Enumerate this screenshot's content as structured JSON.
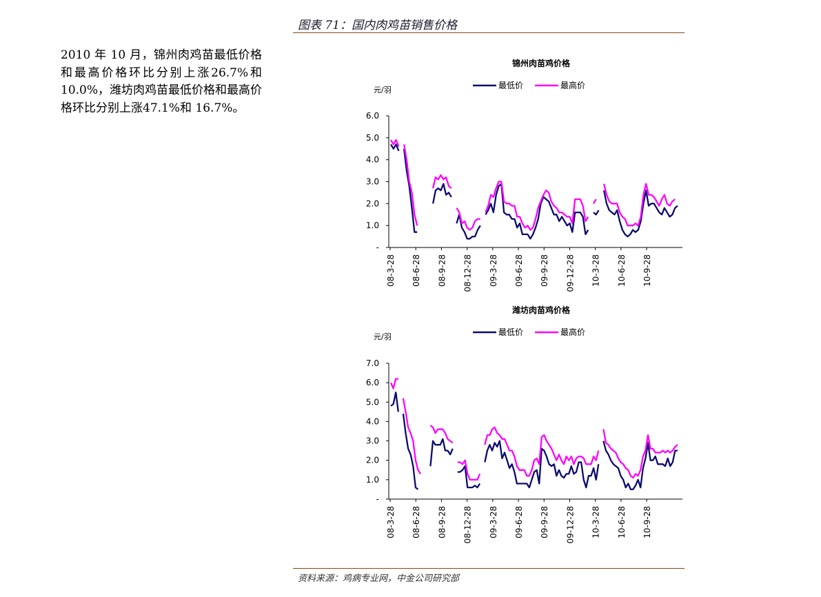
{
  "figure_title": "图表 71：国内肉鸡苗销售价格",
  "side_text": "2010 年 10 月，锦州肉鸡苗最低价格和最高价格环比分别上涨26.7%和 10.0%，潍坊肉鸡苗最低价格和最高价格环比分别上涨47.1%和 16.7%。",
  "source": "资料来源：鸡病专业网，中金公司研究部",
  "colors": {
    "min_series": "#0a0a6e",
    "max_series": "#ff00ff",
    "rule": "#8b4513"
  },
  "chart_data": [
    {
      "type": "line",
      "title": "锦州肉苗鸡价格",
      "ylabel": "元/羽",
      "ylim": [
        0,
        6
      ],
      "yticks": [
        "-",
        "1.0",
        "2.0",
        "3.0",
        "4.0",
        "5.0",
        "6.0"
      ],
      "xtick_labels": [
        "08-3-28",
        "08-6-28",
        "08-9-28",
        "08-12-28",
        "09-3-28",
        "09-6-28",
        "09-9-28",
        "09-12-28",
        "10-3-28",
        "10-6-28",
        "10-9-28"
      ],
      "legend_position": "top",
      "series": [
        {
          "name": "最低价",
          "color": "#0a0a6e",
          "values": [
            4.7,
            4.5,
            4.7,
            4.4,
            null,
            4.5,
            3.5,
            2.8,
            1.8,
            0.7,
            0.7,
            null,
            null,
            null,
            null,
            null,
            2.0,
            2.6,
            2.7,
            2.6,
            2.9,
            2.4,
            2.5,
            2.3,
            null,
            1.1,
            1.5,
            0.9,
            0.7,
            0.4,
            0.4,
            0.5,
            0.5,
            0.8,
            1.0,
            null,
            1.5,
            1.7,
            2.0,
            1.6,
            2.4,
            2.8,
            2.9,
            1.6,
            1.5,
            1.5,
            1.3,
            1.3,
            0.9,
            1.1,
            0.6,
            0.6,
            0.6,
            0.4,
            0.6,
            0.9,
            1.3,
            2.0,
            2.3,
            2.2,
            2.1,
            1.8,
            1.5,
            1.5,
            1.2,
            1.4,
            1.2,
            1.0,
            1.1,
            0.7,
            1.6,
            1.6,
            1.6,
            1.4,
            0.6,
            0.8,
            null,
            1.6,
            1.5,
            1.7,
            null,
            2.6,
            2.0,
            1.7,
            1.6,
            1.5,
            1.7,
            1.2,
            0.8,
            0.6,
            0.5,
            0.6,
            0.8,
            0.7,
            0.8,
            1.2,
            2.0,
            2.6,
            1.9,
            2.0,
            2.0,
            1.8,
            1.6,
            1.5,
            1.8,
            1.6,
            1.4,
            1.5,
            1.8,
            1.9
          ]
        },
        {
          "name": "最高价",
          "color": "#ff00ff",
          "values": [
            4.9,
            4.7,
            4.9,
            4.6,
            null,
            4.7,
            4.0,
            3.0,
            2.5,
            1.5,
            1.0,
            null,
            null,
            null,
            null,
            null,
            2.7,
            3.2,
            3.1,
            3.3,
            3.1,
            3.2,
            2.8,
            2.7,
            null,
            1.8,
            1.6,
            1.1,
            1.2,
            0.9,
            0.8,
            0.9,
            1.2,
            1.3,
            1.3,
            null,
            1.6,
            1.9,
            2.4,
            2.3,
            2.7,
            3.0,
            3.0,
            2.1,
            2.0,
            2.0,
            1.9,
            1.9,
            1.4,
            1.4,
            1.1,
            0.9,
            1.0,
            0.8,
            0.9,
            1.3,
            1.8,
            2.1,
            2.4,
            2.6,
            2.5,
            2.1,
            1.9,
            1.8,
            1.6,
            1.6,
            1.5,
            1.4,
            1.4,
            1.1,
            2.2,
            2.2,
            2.2,
            1.9,
            1.2,
            1.4,
            null,
            2.0,
            2.2,
            null,
            null,
            2.9,
            2.4,
            2.1,
            2.0,
            2.0,
            2.0,
            1.6,
            1.4,
            1.3,
            1.0,
            1.0,
            1.0,
            1.1,
            1.0,
            1.4,
            2.4,
            2.9,
            2.4,
            2.4,
            2.3,
            2.1,
            1.9,
            2.2,
            2.4,
            2.0,
            1.9,
            2.1,
            2.2,
            null
          ]
        }
      ]
    },
    {
      "type": "line",
      "title": "潍坊肉苗鸡价格",
      "ylabel": "元/羽",
      "ylim": [
        0,
        7
      ],
      "yticks": [
        "-",
        "1.0",
        "2.0",
        "3.0",
        "4.0",
        "5.0",
        "6.0",
        "7.0"
      ],
      "xtick_labels": [
        "08-3-28",
        "08-6-28",
        "08-9-28",
        "08-12-28",
        "09-3-28",
        "09-6-28",
        "09-9-28",
        "09-12-28",
        "10-3-28",
        "10-6-28",
        "10-9-28"
      ],
      "legend_position": "top",
      "series": [
        {
          "name": "最低价",
          "color": "#0a0a6e",
          "values": [
            4.8,
            4.9,
            5.5,
            4.5,
            null,
            4.4,
            3.4,
            2.6,
            2.3,
            1.7,
            0.6,
            0.5,
            null,
            null,
            null,
            null,
            1.7,
            3.0,
            2.8,
            2.8,
            2.8,
            3.1,
            2.5,
            2.5,
            2.3,
            2.6,
            null,
            1.4,
            1.4,
            1.5,
            1.7,
            0.6,
            0.6,
            0.6,
            0.7,
            0.6,
            0.8,
            null,
            1.9,
            2.5,
            2.8,
            2.5,
            2.9,
            2.7,
            3.0,
            2.1,
            2.4,
            2.0,
            1.6,
            1.8,
            1.4,
            0.8,
            0.8,
            0.8,
            0.8,
            0.8,
            0.6,
            1.0,
            1.4,
            1.5,
            0.8,
            2.6,
            2.5,
            2.2,
            1.8,
            1.7,
            1.8,
            1.2,
            1.5,
            1.2,
            1.1,
            1.3,
            1.3,
            1.7,
            1.3,
            1.4,
            1.9,
            1.9,
            1.0,
            0.6,
            1.2,
            1.2,
            1.6,
            1.0,
            1.8,
            null,
            3.0,
            2.5,
            2.3,
            2.0,
            1.8,
            1.7,
            1.6,
            1.2,
            1.0,
            0.6,
            0.8,
            0.5,
            0.5,
            0.7,
            1.0,
            0.6,
            1.6,
            2.1,
            2.9,
            2.0,
            2.0,
            2.2,
            1.8,
            1.8,
            1.8,
            1.7,
            2.1,
            1.7,
            1.9,
            2.5,
            2.5
          ]
        },
        {
          "name": "最高价",
          "color": "#ff00ff",
          "values": [
            6.0,
            5.7,
            6.2,
            6.2,
            null,
            5.2,
            4.5,
            3.7,
            3.4,
            3.0,
            2.0,
            1.5,
            1.3,
            null,
            null,
            null,
            3.8,
            3.7,
            3.4,
            3.6,
            3.6,
            3.6,
            3.4,
            3.1,
            3.0,
            2.9,
            null,
            1.9,
            1.9,
            1.8,
            2.0,
            1.3,
            1.0,
            1.0,
            1.0,
            1.0,
            1.3,
            null,
            2.8,
            3.3,
            3.3,
            3.6,
            3.7,
            3.4,
            3.3,
            3.1,
            3.1,
            2.8,
            2.5,
            2.5,
            2.2,
            1.7,
            1.5,
            1.5,
            1.5,
            1.2,
            1.2,
            1.5,
            2.0,
            2.1,
            1.8,
            3.2,
            3.3,
            3.0,
            2.8,
            2.6,
            2.3,
            2.0,
            2.3,
            2.0,
            1.8,
            2.2,
            2.0,
            2.2,
            1.8,
            2.1,
            2.2,
            2.2,
            2.1,
            1.8,
            1.8,
            1.8,
            2.2,
            2.0,
            2.5,
            null,
            3.6,
            2.9,
            2.8,
            2.6,
            2.5,
            2.4,
            2.1,
            1.9,
            1.8,
            1.6,
            1.5,
            1.2,
            1.1,
            1.3,
            1.2,
            1.5,
            2.2,
            2.5,
            3.3,
            2.6,
            2.6,
            2.4,
            2.4,
            2.4,
            2.5,
            2.4,
            2.5,
            2.4,
            2.5,
            2.7,
            2.8
          ]
        }
      ]
    }
  ]
}
